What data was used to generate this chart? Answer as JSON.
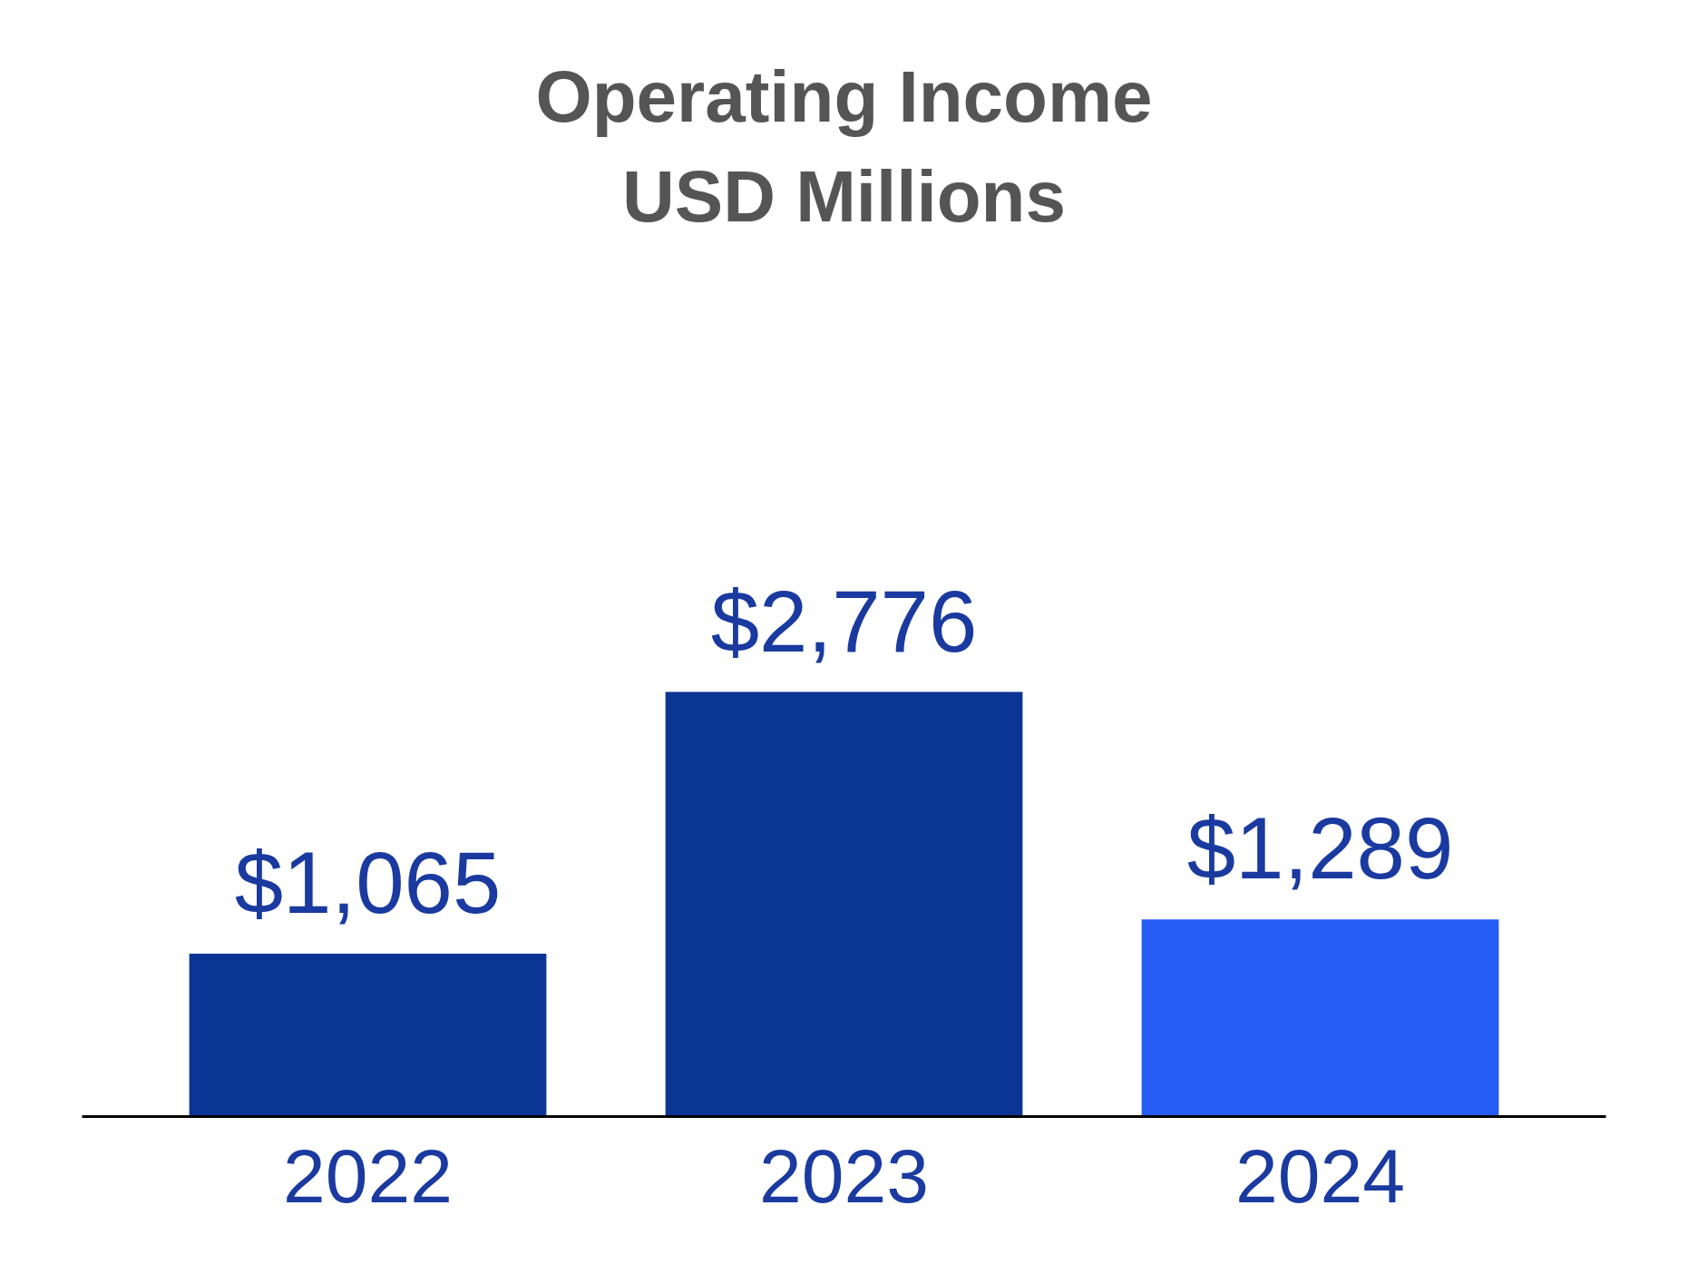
{
  "chart_data": {
    "type": "bar",
    "title": "Operating Income\nUSD Millions",
    "categories": [
      "2022",
      "2023",
      "2024"
    ],
    "values": [
      1065,
      2776,
      1289
    ],
    "colors": [
      "#0b3595",
      "#0b3595",
      "#255df5"
    ],
    "value_labels": [
      "$1,065",
      "$2,776",
      "$1,289"
    ]
  }
}
